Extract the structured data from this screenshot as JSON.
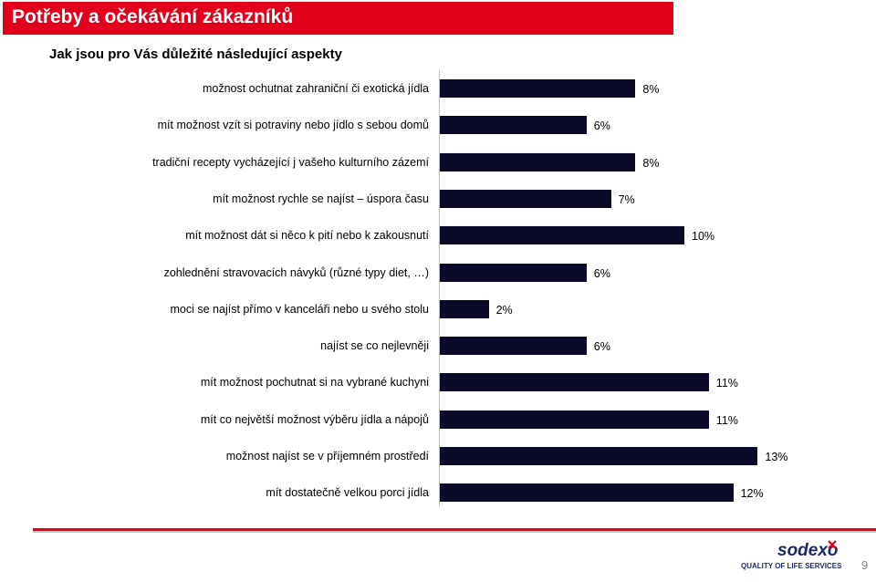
{
  "header": {
    "title": "Potřeby a očekávání zákazníků",
    "title_color": "#e2001a"
  },
  "chart_data": {
    "type": "bar",
    "orientation": "horizontal",
    "title": "Jak jsou pro Vás důležité následující aspekty",
    "xlim": [
      0,
      14
    ],
    "grid": false,
    "bar_color": "#0a0a28",
    "categories": [
      "možnost ochutnat zahraniční či exotická jídla",
      "mít možnost vzít si potraviny nebo jídlo s sebou domů",
      "tradiční recepty vycházející j vašeho kulturního zázemí",
      "mít možnost rychle se najíst – úspora času",
      "mít možnost dát si něco k pití nebo k zakousnutí",
      "zohlednění stravovacích návyků (různé typy diet, …)",
      "moci se najíst přímo v kanceláři nebo u svého stolu",
      "najíst se co nejlevněji",
      "mít možnost pochutnat si na vybrané kuchyni",
      "mít co největší možnost výběru jídla a nápojů",
      "možnost najíst se v příjemném prostředí",
      "mít dostatečně velkou porci jídla"
    ],
    "values": [
      8,
      6,
      8,
      7,
      10,
      6,
      2,
      6,
      11,
      11,
      13,
      12
    ],
    "data_labels": [
      "8%",
      "6%",
      "8%",
      "7%",
      "10%",
      "6%",
      "2%",
      "6%",
      "11%",
      "11%",
      "13%",
      "12%"
    ]
  },
  "footer": {
    "logo_text": "sodexo",
    "logo_tagline": "QUALITY OF LIFE SERVICES",
    "page_number": "9"
  }
}
